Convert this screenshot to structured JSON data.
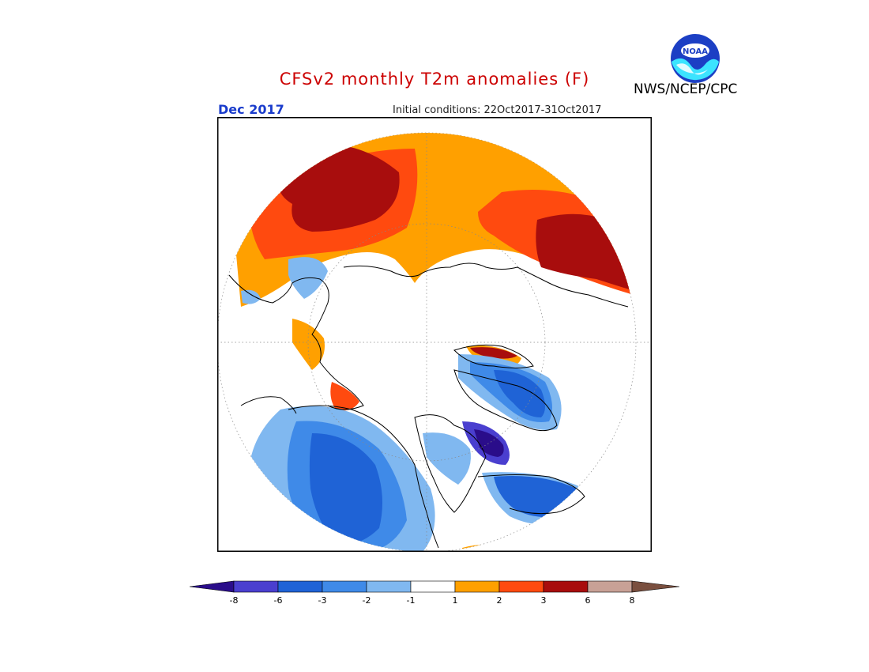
{
  "header": {
    "title": "CFSv2 monthly T2m anomalies (F)",
    "title_color": "#cc0000",
    "valid_month": "Dec 2017",
    "valid_month_color": "#1a3ccc",
    "initial_conditions": "Initial conditions: 22Oct2017-31Oct2017",
    "agency": "NWS/NCEP/CPC",
    "logo_text": "NOAA"
  },
  "legend": {
    "tick_labels": [
      "-8",
      "-6",
      "-3",
      "-2",
      "-1",
      "1",
      "2",
      "3",
      "6",
      "8"
    ],
    "colors": {
      "lt_m8": "#2a0d8a",
      "m8_m6": "#4a3fcf",
      "m6_m3": "#1f63d6",
      "m3_m2": "#3f8ae8",
      "m2_m1": "#80b8f0",
      "m1_1": "#ffffff",
      "p1_2": "#ffa000",
      "p2_3": "#ff4a0f",
      "p3_6": "#a80d0d",
      "p6_8": "#c8a196",
      "gt_8": "#7a4f3f"
    }
  }
}
